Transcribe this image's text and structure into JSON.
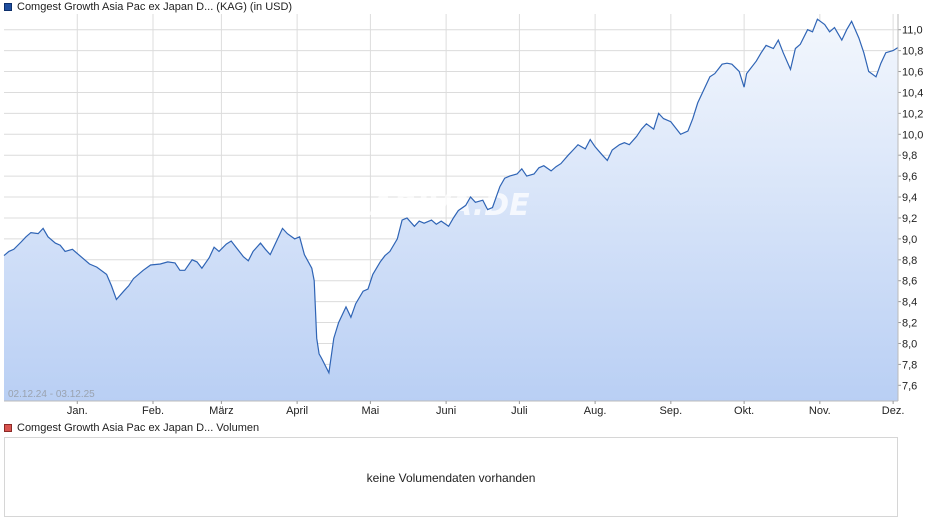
{
  "legend": {
    "price_label": "Comgest Growth Asia Pac ex Japan D... (KAG) (in USD)",
    "volume_label": "Comgest Growth Asia Pac ex Japan D... Volumen"
  },
  "volume": {
    "no_data_text": "keine Volumendaten vorhanden"
  },
  "watermark": "ARIVA.DE",
  "colors": {
    "line": "#2f64b5",
    "fill_top": "#f3f7fd",
    "fill_bottom": "#b9cff4",
    "grid": "#dcdcdc",
    "price_swatch": "#1f4e9e",
    "volume_swatch": "#d9534f"
  },
  "chart_data": {
    "type": "area",
    "date_range_label": "02.12.24 - 03.12.25",
    "x_range": [
      "2024-12-02",
      "2025-12-03"
    ],
    "ylim": [
      7.45,
      11.15
    ],
    "y_ticks": [
      7.6,
      7.8,
      8.0,
      8.2,
      8.4,
      8.6,
      8.8,
      9.0,
      9.2,
      9.4,
      9.6,
      9.8,
      10.0,
      10.2,
      10.4,
      10.6,
      10.8,
      11.0
    ],
    "y_tick_labels": [
      "7,6",
      "7,8",
      "8,0",
      "8,2",
      "8,4",
      "8,6",
      "8,8",
      "9,0",
      "9,2",
      "9,4",
      "9,6",
      "9,8",
      "10,0",
      "10,2",
      "10,4",
      "10,6",
      "10,8",
      "11,0"
    ],
    "x_ticks": [
      {
        "date": "2025-01-01",
        "label": "Jan."
      },
      {
        "date": "2025-02-01",
        "label": "Feb."
      },
      {
        "date": "2025-03-01",
        "label": "März"
      },
      {
        "date": "2025-04-01",
        "label": "April"
      },
      {
        "date": "2025-05-01",
        "label": "Mai"
      },
      {
        "date": "2025-06-01",
        "label": "Juni"
      },
      {
        "date": "2025-07-01",
        "label": "Juli"
      },
      {
        "date": "2025-08-01",
        "label": "Aug."
      },
      {
        "date": "2025-09-01",
        "label": "Sep."
      },
      {
        "date": "2025-10-01",
        "label": "Okt."
      },
      {
        "date": "2025-11-01",
        "label": "Nov."
      },
      {
        "date": "2025-12-01",
        "label": "Dez."
      }
    ],
    "grid": true,
    "y_axis_position": "right",
    "series": [
      {
        "points": [
          [
            "2024-12-02",
            8.84
          ],
          [
            "2024-12-04",
            8.88
          ],
          [
            "2024-12-06",
            8.9
          ],
          [
            "2024-12-09",
            8.97
          ],
          [
            "2024-12-11",
            9.02
          ],
          [
            "2024-12-13",
            9.06
          ],
          [
            "2024-12-16",
            9.05
          ],
          [
            "2024-12-18",
            9.1
          ],
          [
            "2024-12-20",
            9.02
          ],
          [
            "2024-12-23",
            8.96
          ],
          [
            "2024-12-25",
            8.94
          ],
          [
            "2024-12-27",
            8.88
          ],
          [
            "2024-12-30",
            8.9
          ],
          [
            "2025-01-02",
            8.84
          ],
          [
            "2025-01-06",
            8.76
          ],
          [
            "2025-01-09",
            8.73
          ],
          [
            "2025-01-13",
            8.66
          ],
          [
            "2025-01-15",
            8.55
          ],
          [
            "2025-01-17",
            8.42
          ],
          [
            "2025-01-20",
            8.5
          ],
          [
            "2025-01-22",
            8.55
          ],
          [
            "2025-01-24",
            8.62
          ],
          [
            "2025-01-28",
            8.7
          ],
          [
            "2025-01-31",
            8.75
          ],
          [
            "2025-02-04",
            8.76
          ],
          [
            "2025-02-07",
            8.78
          ],
          [
            "2025-02-10",
            8.77
          ],
          [
            "2025-02-12",
            8.7
          ],
          [
            "2025-02-14",
            8.7
          ],
          [
            "2025-02-17",
            8.8
          ],
          [
            "2025-02-19",
            8.78
          ],
          [
            "2025-02-21",
            8.72
          ],
          [
            "2025-02-24",
            8.82
          ],
          [
            "2025-02-26",
            8.92
          ],
          [
            "2025-02-28",
            8.88
          ],
          [
            "2025-03-03",
            8.95
          ],
          [
            "2025-03-05",
            8.98
          ],
          [
            "2025-03-07",
            8.92
          ],
          [
            "2025-03-10",
            8.83
          ],
          [
            "2025-03-12",
            8.79
          ],
          [
            "2025-03-14",
            8.88
          ],
          [
            "2025-03-17",
            8.96
          ],
          [
            "2025-03-19",
            8.9
          ],
          [
            "2025-03-21",
            8.85
          ],
          [
            "2025-03-24",
            9.0
          ],
          [
            "2025-03-26",
            9.1
          ],
          [
            "2025-03-28",
            9.05
          ],
          [
            "2025-03-31",
            9.0
          ],
          [
            "2025-04-02",
            9.02
          ],
          [
            "2025-04-04",
            8.85
          ],
          [
            "2025-04-07",
            8.72
          ],
          [
            "2025-04-08",
            8.6
          ],
          [
            "2025-04-09",
            8.05
          ],
          [
            "2025-04-10",
            7.9
          ],
          [
            "2025-04-11",
            7.86
          ],
          [
            "2025-04-14",
            7.72
          ],
          [
            "2025-04-16",
            8.05
          ],
          [
            "2025-04-18",
            8.2
          ],
          [
            "2025-04-21",
            8.35
          ],
          [
            "2025-04-23",
            8.25
          ],
          [
            "2025-04-25",
            8.38
          ],
          [
            "2025-04-28",
            8.5
          ],
          [
            "2025-04-30",
            8.52
          ],
          [
            "2025-05-02",
            8.66
          ],
          [
            "2025-05-05",
            8.78
          ],
          [
            "2025-05-07",
            8.84
          ],
          [
            "2025-05-09",
            8.88
          ],
          [
            "2025-05-12",
            9.0
          ],
          [
            "2025-05-14",
            9.18
          ],
          [
            "2025-05-16",
            9.2
          ],
          [
            "2025-05-19",
            9.12
          ],
          [
            "2025-05-21",
            9.17
          ],
          [
            "2025-05-23",
            9.15
          ],
          [
            "2025-05-26",
            9.18
          ],
          [
            "2025-05-28",
            9.14
          ],
          [
            "2025-05-30",
            9.17
          ],
          [
            "2025-06-02",
            9.12
          ],
          [
            "2025-06-04",
            9.2
          ],
          [
            "2025-06-06",
            9.27
          ],
          [
            "2025-06-09",
            9.32
          ],
          [
            "2025-06-11",
            9.4
          ],
          [
            "2025-06-13",
            9.35
          ],
          [
            "2025-06-16",
            9.37
          ],
          [
            "2025-06-18",
            9.28
          ],
          [
            "2025-06-20",
            9.3
          ],
          [
            "2025-06-23",
            9.5
          ],
          [
            "2025-06-25",
            9.58
          ],
          [
            "2025-06-27",
            9.6
          ],
          [
            "2025-06-30",
            9.62
          ],
          [
            "2025-07-02",
            9.67
          ],
          [
            "2025-07-04",
            9.6
          ],
          [
            "2025-07-07",
            9.62
          ],
          [
            "2025-07-09",
            9.68
          ],
          [
            "2025-07-11",
            9.7
          ],
          [
            "2025-07-14",
            9.65
          ],
          [
            "2025-07-16",
            9.69
          ],
          [
            "2025-07-18",
            9.72
          ],
          [
            "2025-07-21",
            9.8
          ],
          [
            "2025-07-23",
            9.85
          ],
          [
            "2025-07-25",
            9.9
          ],
          [
            "2025-07-28",
            9.86
          ],
          [
            "2025-07-30",
            9.95
          ],
          [
            "2025-08-01",
            9.88
          ],
          [
            "2025-08-04",
            9.8
          ],
          [
            "2025-08-06",
            9.75
          ],
          [
            "2025-08-08",
            9.85
          ],
          [
            "2025-08-11",
            9.9
          ],
          [
            "2025-08-13",
            9.92
          ],
          [
            "2025-08-15",
            9.9
          ],
          [
            "2025-08-18",
            9.98
          ],
          [
            "2025-08-20",
            10.05
          ],
          [
            "2025-08-22",
            10.1
          ],
          [
            "2025-08-25",
            10.05
          ],
          [
            "2025-08-27",
            10.2
          ],
          [
            "2025-08-29",
            10.15
          ],
          [
            "2025-09-01",
            10.12
          ],
          [
            "2025-09-03",
            10.06
          ],
          [
            "2025-09-05",
            10.0
          ],
          [
            "2025-09-08",
            10.03
          ],
          [
            "2025-09-10",
            10.15
          ],
          [
            "2025-09-12",
            10.3
          ],
          [
            "2025-09-15",
            10.45
          ],
          [
            "2025-09-17",
            10.55
          ],
          [
            "2025-09-19",
            10.58
          ],
          [
            "2025-09-22",
            10.67
          ],
          [
            "2025-09-24",
            10.68
          ],
          [
            "2025-09-26",
            10.67
          ],
          [
            "2025-09-29",
            10.6
          ],
          [
            "2025-10-01",
            10.45
          ],
          [
            "2025-10-02",
            10.58
          ],
          [
            "2025-10-06",
            10.7
          ],
          [
            "2025-10-08",
            10.78
          ],
          [
            "2025-10-10",
            10.85
          ],
          [
            "2025-10-13",
            10.82
          ],
          [
            "2025-10-15",
            10.9
          ],
          [
            "2025-10-17",
            10.78
          ],
          [
            "2025-10-20",
            10.62
          ],
          [
            "2025-10-22",
            10.82
          ],
          [
            "2025-10-24",
            10.86
          ],
          [
            "2025-10-27",
            11.0
          ],
          [
            "2025-10-29",
            10.98
          ],
          [
            "2025-10-31",
            11.1
          ],
          [
            "2025-11-03",
            11.05
          ],
          [
            "2025-11-05",
            10.98
          ],
          [
            "2025-11-07",
            11.02
          ],
          [
            "2025-11-10",
            10.9
          ],
          [
            "2025-11-12",
            11.0
          ],
          [
            "2025-11-14",
            11.08
          ],
          [
            "2025-11-17",
            10.92
          ],
          [
            "2025-11-19",
            10.78
          ],
          [
            "2025-11-21",
            10.6
          ],
          [
            "2025-11-24",
            10.55
          ],
          [
            "2025-11-26",
            10.68
          ],
          [
            "2025-11-28",
            10.78
          ],
          [
            "2025-12-01",
            10.8
          ],
          [
            "2025-12-03",
            10.83
          ]
        ]
      }
    ]
  }
}
